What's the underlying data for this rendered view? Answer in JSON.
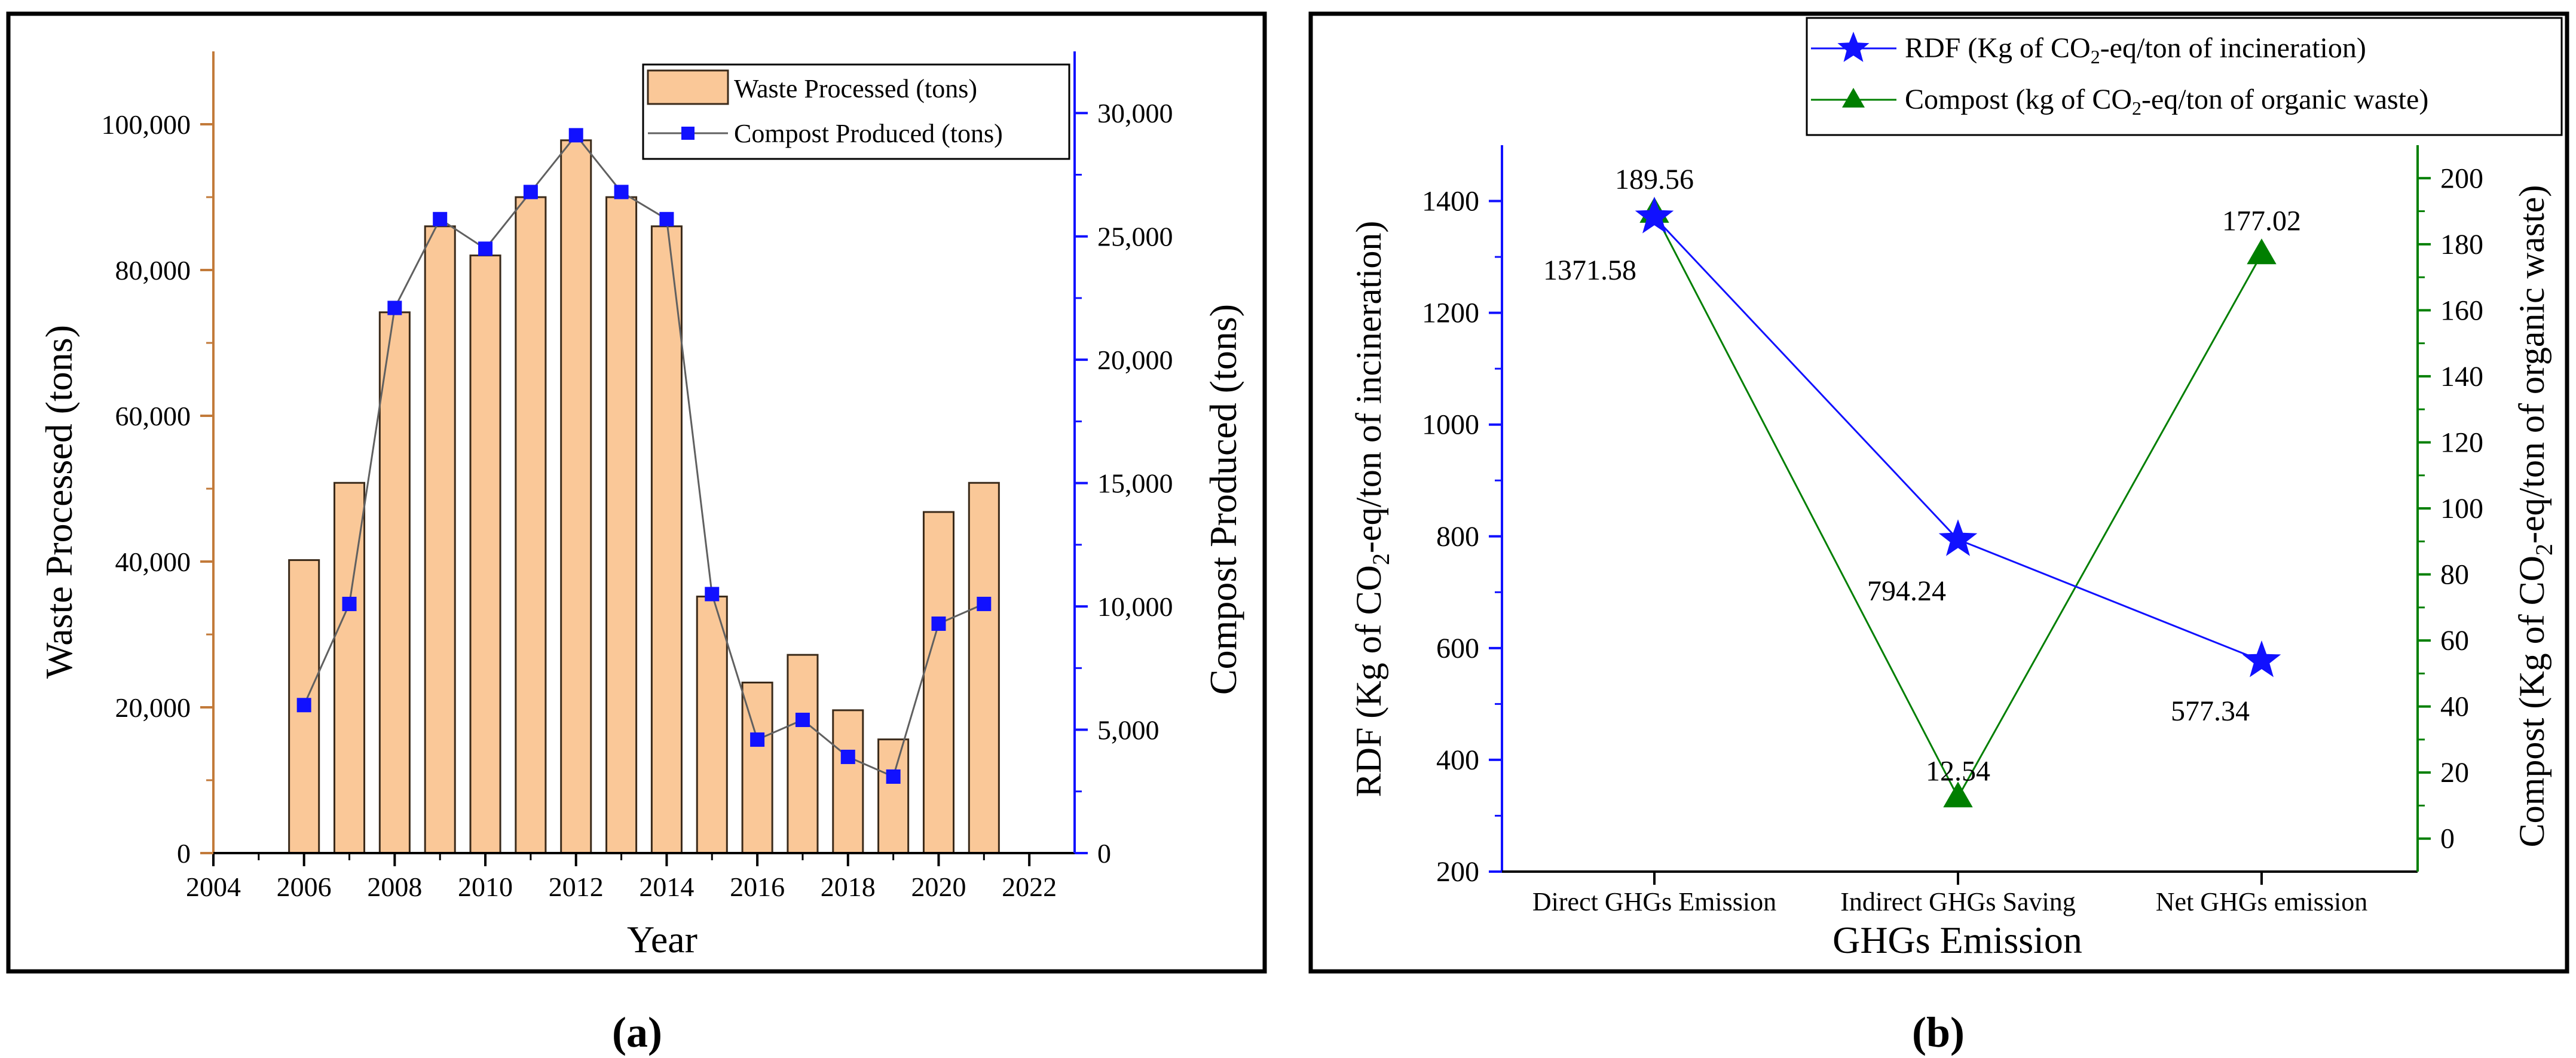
{
  "colors": {
    "bar_fill": "#fac898",
    "bar_stroke": "#3a2a1a",
    "left_axis_a": "#c27a3a",
    "blue": "#1111ff",
    "green": "#007f00",
    "line_a": "#606060",
    "frame": "#000000"
  },
  "chart_data": [
    {
      "panel_label": "(a)",
      "type": "bar",
      "xlabel": "Year",
      "ylabel": "Waste Processed (tons)",
      "y2label": "Compost Produced (tons)",
      "xlim": [
        2004,
        2023
      ],
      "ylim": [
        0,
        110000
      ],
      "y2lim": [
        0,
        32500
      ],
      "xticks": [
        "2004",
        "2006",
        "2008",
        "2010",
        "2012",
        "2014",
        "2016",
        "2018",
        "2020",
        "2022"
      ],
      "yticks": [
        "0",
        "20,000",
        "40,000",
        "60,000",
        "80,000",
        "100,000"
      ],
      "y2ticks": [
        "0",
        "5,000",
        "10,000",
        "15,000",
        "20,000",
        "25,000",
        "30,000"
      ],
      "x": [
        2006,
        2007,
        2008,
        2009,
        2010,
        2011,
        2012,
        2013,
        2014,
        2015,
        2016,
        2017,
        2018,
        2019,
        2020,
        2021
      ],
      "series": [
        {
          "name": "Waste Processed (tons)",
          "kind": "bar",
          "axis": "left",
          "values": [
            40200,
            50800,
            74200,
            86000,
            82000,
            90000,
            97800,
            90000,
            86000,
            35200,
            23400,
            27200,
            19600,
            15600,
            46800,
            50800
          ]
        },
        {
          "name": "Compost Produced (tons)",
          "kind": "line",
          "axis": "right",
          "values": [
            6000,
            10100,
            22100,
            25700,
            24500,
            26800,
            29100,
            26800,
            25700,
            10500,
            4600,
            5400,
            3900,
            3100,
            9300,
            10100
          ]
        }
      ],
      "legend": [
        "Waste Processed (tons)",
        "Compost Produced (tons)"
      ]
    },
    {
      "panel_label": "(b)",
      "type": "line",
      "xlabel": "GHGs Emission",
      "ylabel_parts": [
        "RDF (Kg of CO",
        "2",
        "-eq/ton of incineration)"
      ],
      "y2label_parts": [
        "Compost (Kg of CO",
        "2",
        "-eq/ton of organic waste)"
      ],
      "categories": [
        "Direct GHGs Emission",
        "Indirect GHGs Saving",
        "Net GHGs emission"
      ],
      "ylim": [
        200,
        1500
      ],
      "y2lim": [
        -10,
        210
      ],
      "yticks": [
        "200",
        "400",
        "600",
        "800",
        "1000",
        "1200",
        "1400"
      ],
      "y2ticks": [
        "0",
        "20",
        "40",
        "60",
        "80",
        "100",
        "120",
        "140",
        "160",
        "180",
        "200"
      ],
      "series": [
        {
          "name": "RDF",
          "axis": "left",
          "marker": "star",
          "values": [
            1371.58,
            794.24,
            577.34
          ],
          "labels": [
            "1371.58",
            "794.24",
            "577.34"
          ],
          "legend_parts": [
            "RDF (Kg of CO",
            "2",
            "-eq/ton of incineration)"
          ]
        },
        {
          "name": "Compost",
          "axis": "right",
          "marker": "triangle",
          "values": [
            189.56,
            12.54,
            177.02
          ],
          "labels": [
            "189.56",
            "12.54",
            "177.02"
          ],
          "legend_parts": [
            "Compost (kg of CO",
            "2",
            "-eq/ton of organic waste)"
          ]
        }
      ]
    }
  ]
}
